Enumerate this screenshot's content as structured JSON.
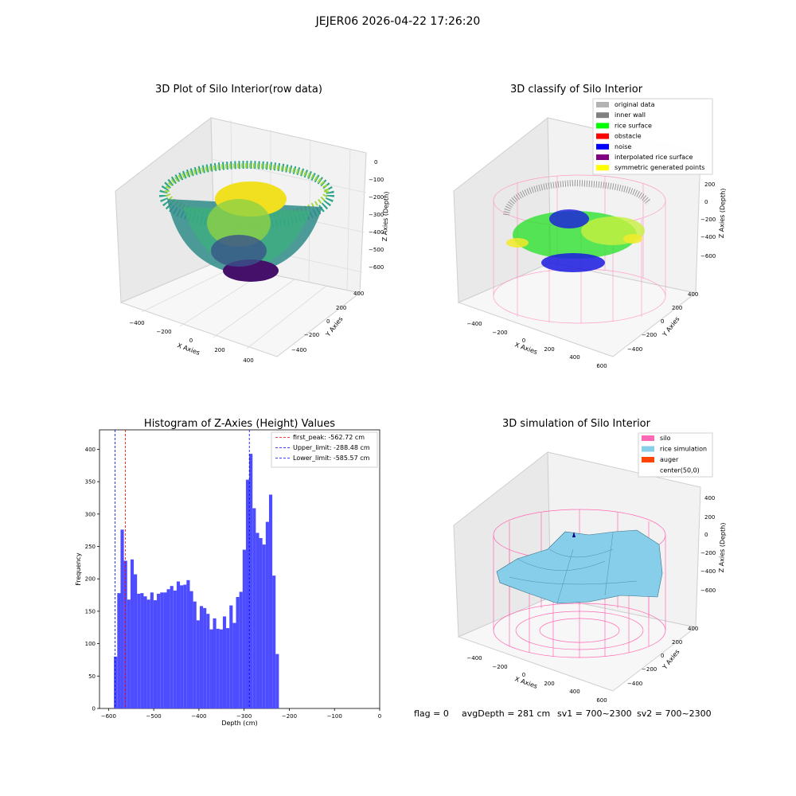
{
  "suptitle": "JEJER06 2026-04-22 17:26:20",
  "panels": {
    "raw": {
      "title": "3D Plot of Silo Interior(row data)",
      "xlabel": "X Axies",
      "ylabel": "Y Axies",
      "zlabel": "Z Axies (Depth)",
      "xticks": [
        "−400",
        "−200",
        "0",
        "200",
        "400"
      ],
      "yticks": [
        "400",
        "200",
        "0",
        "−200",
        "−400"
      ],
      "zticks": [
        "0",
        "−100",
        "−200",
        "−300",
        "−400",
        "−500",
        "−600"
      ]
    },
    "classify": {
      "title": "3D classify of Silo Interior",
      "xlabel": "X Axies",
      "ylabel": "Y Axies",
      "zlabel": "Z Axies (Depth)",
      "xticks": [
        "−400",
        "−200",
        "0",
        "200",
        "400",
        "600"
      ],
      "yticks": [
        "400",
        "200",
        "0",
        "−200",
        "−400"
      ],
      "zticks": [
        "200",
        "0",
        "−200",
        "−400",
        "−600"
      ],
      "legend": [
        {
          "label": "original data",
          "color": "#b3b3b3"
        },
        {
          "label": "inner wall",
          "color": "#808080"
        },
        {
          "label": "rice surface",
          "color": "#00ff00"
        },
        {
          "label": "obstacle",
          "color": "#ff0000"
        },
        {
          "label": "noise",
          "color": "#0000ff"
        },
        {
          "label": "interpolated rice surface",
          "color": "#800080"
        },
        {
          "label": "symmetric generated points",
          "color": "#ffff00"
        }
      ]
    },
    "simulation": {
      "title": "3D simulation of Silo Interior",
      "xlabel": "X Axies",
      "ylabel": "Y Axies",
      "zlabel": "Z Axies (Depth)",
      "xticks": [
        "−400",
        "−200",
        "0",
        "200",
        "400",
        "600"
      ],
      "yticks": [
        "400",
        "200",
        "0",
        "−200",
        "−400"
      ],
      "zticks": [
        "400",
        "200",
        "0",
        "−200",
        "−400",
        "−600"
      ],
      "legend": [
        {
          "label": "silo",
          "color": "#ff69b4"
        },
        {
          "label": "rice simulation",
          "color": "#87ceeb"
        },
        {
          "label": "auger",
          "color": "#ff4500"
        },
        {
          "label": "center(50,0)",
          "color": "#ffffff"
        }
      ]
    }
  },
  "status_line": {
    "flag": "flag = 0",
    "avg": "avgDepth = 281 cm",
    "sv1": "sv1 = 700~2300",
    "sv2": "sv2 = 700~2300"
  },
  "colors": {
    "bar": "#4d4dff",
    "first_peak": "#ff0000",
    "limits": "#0000ff",
    "silo": "#ff69b4",
    "rice": "#87ceeb"
  },
  "chart_data": {
    "type": "bar",
    "title": "Histogram of Z-Axies (Height) Values",
    "xlabel": "Depth (cm)",
    "ylabel": "Frequency",
    "xlim": [
      -620,
      0
    ],
    "ylim": [
      0,
      430
    ],
    "bin_width": 7.3,
    "bin_start": -588,
    "values": [
      80,
      178,
      276,
      228,
      168,
      230,
      207,
      177,
      178,
      173,
      168,
      179,
      167,
      177,
      179,
      179,
      184,
      189,
      182,
      196,
      190,
      191,
      198,
      181,
      165,
      136,
      158,
      155,
      146,
      122,
      139,
      123,
      122,
      142,
      124,
      159,
      132,
      172,
      180,
      245,
      353,
      393,
      309,
      271,
      263,
      253,
      288,
      330,
      205,
      84
    ],
    "xticks": [
      "−600",
      "−500",
      "−400",
      "−300",
      "−200",
      "−100",
      "0"
    ],
    "xtick_values": [
      -600,
      -500,
      -400,
      -300,
      -200,
      -100,
      0
    ],
    "yticks": [
      "0",
      "50",
      "100",
      "150",
      "200",
      "250",
      "300",
      "350",
      "400"
    ],
    "ytick_values": [
      0,
      50,
      100,
      150,
      200,
      250,
      300,
      350,
      400
    ],
    "lines": [
      {
        "label": "first_peak: -562.72 cm",
        "x": -562.72,
        "color": "#ff0000"
      },
      {
        "label": "Upper_limit: -288.48 cm",
        "x": -288.48,
        "color": "#0000ff"
      },
      {
        "label": "Lower_limit: -585.57 cm",
        "x": -585.57,
        "color": "#0000ff"
      }
    ],
    "legend_position": "top-right"
  }
}
